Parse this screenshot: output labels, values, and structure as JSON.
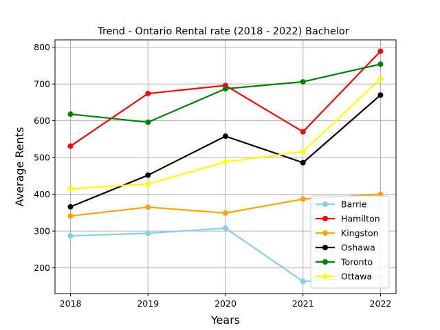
{
  "chart_data": {
    "type": "line",
    "title": "Trend - Ontario Rental rate (2018 - 2022) Bachelor",
    "xlabel": "Years",
    "ylabel": "Average Rents",
    "x": [
      2018,
      2019,
      2020,
      2021,
      2022
    ],
    "x_tick_labels": [
      "2018",
      "2019",
      "2020",
      "2021",
      "2022"
    ],
    "xlim": [
      2017.8,
      2022.2
    ],
    "ylim": [
      130,
      820
    ],
    "y_ticks": [
      200,
      300,
      400,
      500,
      600,
      700,
      800
    ],
    "y_tick_labels": [
      "200",
      "300",
      "400",
      "500",
      "600",
      "700",
      "800"
    ],
    "grid": true,
    "legend_position": "lower-right",
    "series": [
      {
        "name": "Barrie",
        "color": "#87ceeb",
        "values": [
          287,
          294,
          308,
          163,
          176
        ]
      },
      {
        "name": "Hamilton",
        "color": "#ff0000",
        "values": [
          531,
          674,
          696,
          570,
          789
        ]
      },
      {
        "name": "Kingston",
        "color": "#ffa500",
        "values": [
          341,
          365,
          349,
          387,
          400
        ]
      },
      {
        "name": "Oshawa",
        "color": "#000000",
        "values": [
          366,
          452,
          558,
          486,
          670
        ]
      },
      {
        "name": "Toronto",
        "color": "#008000",
        "values": [
          618,
          596,
          687,
          706,
          754
        ]
      },
      {
        "name": "Ottawa",
        "color": "#ffff00",
        "values": [
          415,
          428,
          488,
          516,
          714
        ]
      }
    ]
  }
}
